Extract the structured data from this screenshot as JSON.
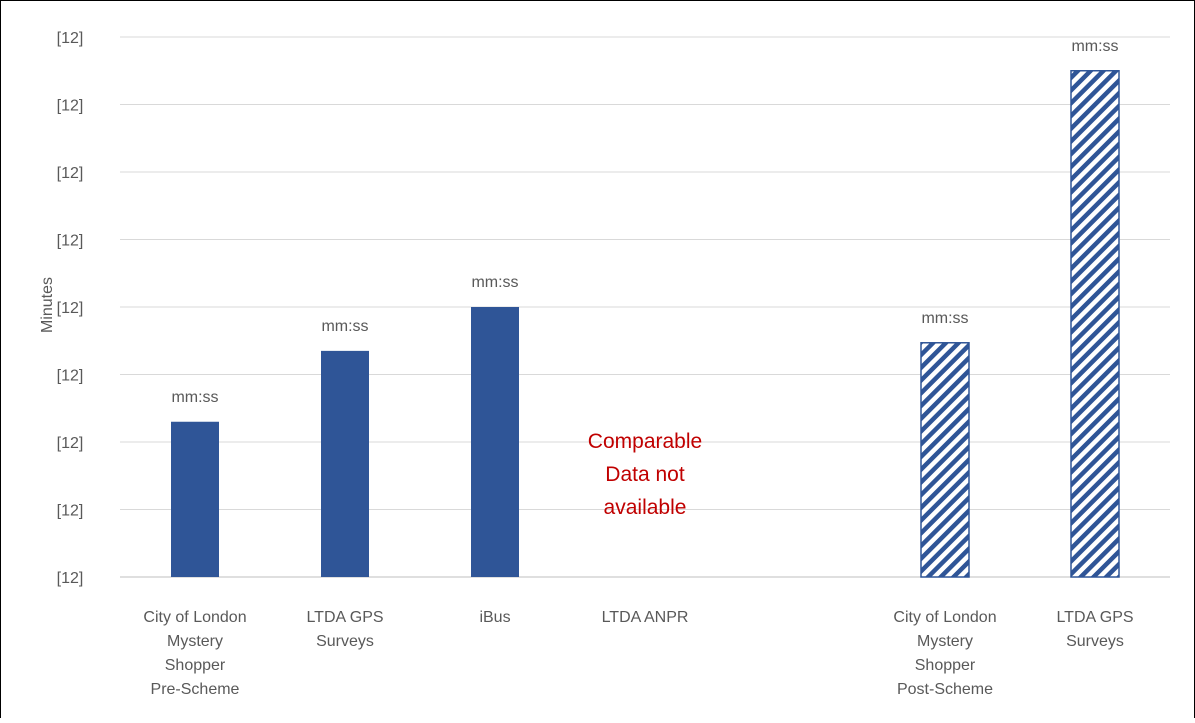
{
  "chart_data": {
    "type": "bar",
    "y_label": "Minutes",
    "categories": [
      "City of London\nMystery\nShopper\nPre-Scheme",
      "LTDA GPS\nSurveys",
      "iBus",
      "LTDA ANPR",
      null,
      "City of London\nMystery\nShopper\nPost-Scheme",
      "LTDA GPS\nSurveys"
    ],
    "values": [
      2.3,
      3.35,
      4.0,
      null,
      null,
      3.47,
      7.5
    ],
    "value_labels": [
      "mm:ss",
      "mm:ss",
      "mm:ss",
      null,
      null,
      "mm:ss",
      "mm:ss"
    ],
    "bar_styles": [
      "solid",
      "solid",
      "solid",
      null,
      null,
      "hatched",
      "hatched"
    ],
    "color": "#2f5597",
    "annotation": "Comparable\nData not\navailable",
    "annotation_color": "#c00000",
    "ylim": [
      0,
      8
    ],
    "yticks": [
      {
        "value": 0,
        "label": "[12]"
      },
      {
        "value": 1,
        "label": "[12]"
      },
      {
        "value": 2,
        "label": "[12]"
      },
      {
        "value": 3,
        "label": "[12]"
      },
      {
        "value": 4,
        "label": "[12]"
      },
      {
        "value": 5,
        "label": "[12]"
      },
      {
        "value": 6,
        "label": "[12]"
      },
      {
        "value": 7,
        "label": "[12]"
      },
      {
        "value": 8,
        "label": "[12]"
      }
    ],
    "grid": true
  }
}
